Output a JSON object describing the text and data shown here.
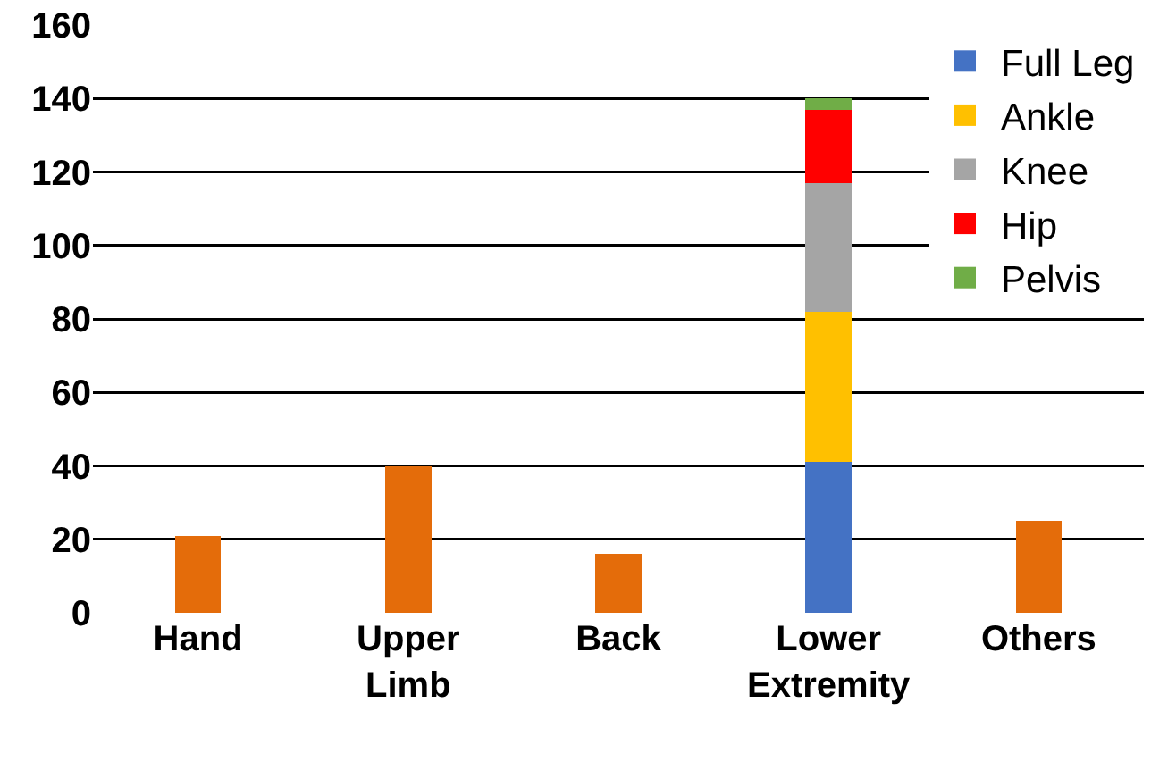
{
  "chart_data": {
    "type": "bar",
    "stacked": true,
    "categories": [
      "Hand",
      "Upper Limb",
      "Back",
      "Lower Extremity",
      "Others"
    ],
    "series": [
      {
        "color": "#e46c0a",
        "values": [
          21,
          40,
          16,
          null,
          25
        ]
      },
      {
        "name": "Full Leg",
        "color": "#4472c4",
        "values": [
          null,
          null,
          null,
          41,
          null
        ]
      },
      {
        "name": "Ankle",
        "color": "#ffc000",
        "values": [
          null,
          null,
          null,
          41,
          null
        ]
      },
      {
        "name": "Knee",
        "color": "#a5a5a5",
        "values": [
          null,
          null,
          null,
          35,
          null
        ]
      },
      {
        "name": "Hip",
        "color": "#ff0000",
        "values": [
          null,
          null,
          null,
          20,
          null
        ]
      },
      {
        "name": "Pelvis",
        "color": "#70ad47",
        "values": [
          null,
          null,
          null,
          3,
          null
        ]
      }
    ],
    "ylim": [
      0,
      160
    ],
    "yticks": [
      0,
      20,
      40,
      60,
      80,
      100,
      120,
      140,
      160
    ],
    "grid": "y",
    "legend": "top right"
  }
}
